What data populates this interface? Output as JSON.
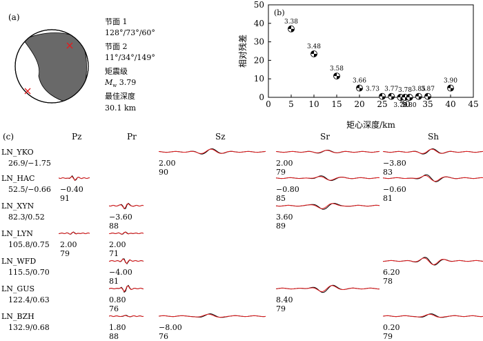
{
  "panel_a": {
    "label": "(a)",
    "plane1_label": "节面 1",
    "plane1_value": "128°/73°/60°",
    "plane2_label": "节面 2",
    "plane2_value": "11°/34°/149°",
    "magnitude_label": "矩震级",
    "magnitude_symbol": "M",
    "magnitude_sub": "w",
    "magnitude_value": "3.79",
    "depth_label": "最佳深度",
    "depth_value": "30.1 km",
    "colors": {
      "compression": "#696969",
      "marker": "#e41a1c"
    }
  },
  "chart_data": {
    "type": "scatter",
    "panel_label": "(b)",
    "xlabel": "矩心深度/km",
    "ylabel": "相对残差",
    "xlim": [
      0,
      45
    ],
    "ylim": [
      0,
      50
    ],
    "xticks": [
      0,
      5,
      10,
      15,
      20,
      25,
      30,
      35,
      40,
      45
    ],
    "yticks": [
      0,
      10,
      20,
      30,
      40,
      50
    ],
    "points": [
      {
        "x": 5,
        "y": 37,
        "label": "3.38"
      },
      {
        "x": 10,
        "y": 23.5,
        "label": "3.48"
      },
      {
        "x": 15,
        "y": 11.5,
        "label": "3.58"
      },
      {
        "x": 20,
        "y": 5,
        "label": "3.66"
      },
      {
        "x": 25,
        "y": 0.5,
        "label": "3.73"
      },
      {
        "x": 27,
        "y": 0.5,
        "label": "3.77"
      },
      {
        "x": 29,
        "y": 0,
        "label": "3.79"
      },
      {
        "x": 30,
        "y": 0,
        "label": "3.78"
      },
      {
        "x": 31,
        "y": 0,
        "label": "3.80"
      },
      {
        "x": 33,
        "y": 0.5,
        "label": "3.85"
      },
      {
        "x": 35,
        "y": 0.5,
        "label": "3.87"
      },
      {
        "x": 40,
        "y": 5,
        "label": "3.90"
      }
    ]
  },
  "panel_c": {
    "label": "(c)",
    "components": [
      "Pz",
      "Pr",
      "Sz",
      "Sr",
      "Sh"
    ],
    "stations": [
      {
        "name": "LN_YKO",
        "dist": "26.9/−1.75",
        "cells": {
          "Sz": [
            "2.00",
            "90"
          ],
          "Sr": [
            "2.00",
            "79"
          ],
          "Sh": [
            "−3.80",
            "83"
          ]
        }
      },
      {
        "name": "LN_HAC",
        "dist": "52.5/−0.66",
        "cells": {
          "Pz": [
            "−0.40",
            "91"
          ],
          "Sr": [
            "−0.80",
            "85"
          ],
          "Sh": [
            "−0.60",
            "81"
          ]
        }
      },
      {
        "name": "LN_XYN",
        "dist": "82.3/0.52",
        "cells": {
          "Pr": [
            "−3.60",
            "88"
          ],
          "Sr": [
            "3.60",
            "89"
          ]
        }
      },
      {
        "name": "LN_LYN",
        "dist": "105.8/0.75",
        "cells": {
          "Pz": [
            "2.00",
            "79"
          ],
          "Pr": [
            "2.00",
            "71"
          ]
        }
      },
      {
        "name": "LN_WFD",
        "dist": "115.5/0.70",
        "cells": {
          "Pr": [
            "−4.00",
            "81"
          ],
          "Sh": [
            "6.20",
            "78"
          ]
        }
      },
      {
        "name": "LN_GUS",
        "dist": "122.4/0.63",
        "cells": {
          "Pr": [
            "0.80",
            "76"
          ],
          "Sr": [
            "8.40",
            "79"
          ]
        }
      },
      {
        "name": "LN_BZH",
        "dist": "132.9/0.68",
        "cells": {
          "Pr": [
            "1.80",
            "88"
          ],
          "Sz": [
            "−8.00",
            "76"
          ],
          "Sh": [
            "0.20",
            "79"
          ]
        }
      }
    ],
    "colors": {
      "observed": "#000000",
      "synthetic": "#e41a1c"
    }
  }
}
